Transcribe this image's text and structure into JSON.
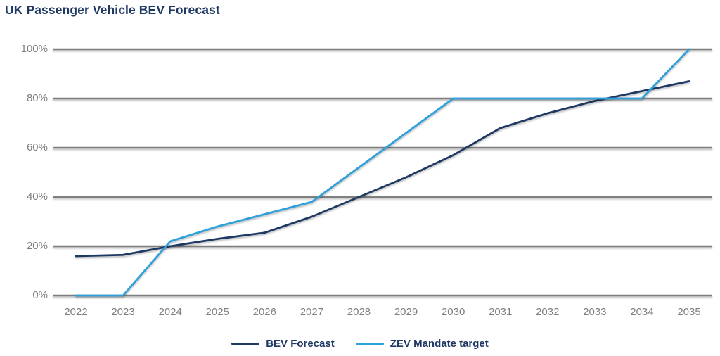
{
  "title": "UK Passenger Vehicle BEV Forecast",
  "colors": {
    "navy": "#1F3864",
    "blue": "#2E9FD9",
    "gridline": "#7F7F7F",
    "tick_text": "#7F7F7F",
    "background": "#FFFFFF"
  },
  "chart_data": {
    "type": "line",
    "title": "UK Passenger Vehicle BEV Forecast",
    "x": [
      "2022",
      "2023",
      "2024",
      "2025",
      "2026",
      "2027",
      "2028",
      "2029",
      "2030",
      "2031",
      "2032",
      "2033",
      "2034",
      "2035"
    ],
    "series": [
      {
        "name": "BEV Forecast",
        "color": "#1F3864",
        "values": [
          16,
          16.5,
          20,
          23,
          25.5,
          32,
          40,
          48,
          57,
          68,
          74,
          79,
          83,
          87
        ]
      },
      {
        "name": "ZEV Mandate target",
        "color": "#2E9FD9",
        "values": [
          0,
          0,
          22,
          28,
          33,
          38,
          52,
          66,
          80,
          80,
          80,
          80,
          80,
          100
        ]
      }
    ],
    "xlabel": "",
    "ylabel": "",
    "ylim": [
      0,
      100
    ],
    "y_ticks": [
      "0%",
      "20%",
      "40%",
      "60%",
      "80%",
      "100%"
    ],
    "grid": true,
    "legend_position": "bottom"
  }
}
